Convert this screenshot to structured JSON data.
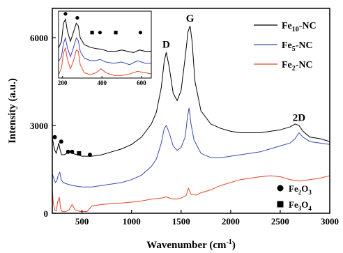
{
  "chart_data": [
    {
      "type": "line",
      "xlabel_main": "Wavenumber (cm",
      "xlabel_sup": "-1",
      "xlabel_tail": ")",
      "ylabel": "Intensity (a.u.)",
      "xlim": [
        200,
        3000
      ],
      "ylim": [
        0,
        7000
      ],
      "xticks": [
        500,
        1000,
        1500,
        2000,
        2500,
        3000
      ],
      "xtick_labels": [
        "500",
        "1000",
        "1500",
        "2000",
        "2500",
        "3000"
      ],
      "yticks": [
        0,
        3000,
        6000
      ],
      "ytick_labels": [
        "0",
        "3000",
        "6000"
      ],
      "legend_position": "top-right",
      "series": [
        {
          "name_main": "Fe",
          "name_sub": "10",
          "name_tail": "-NC",
          "color": "#000000",
          "x": [
            200,
            215,
            225,
            240,
            255,
            265,
            280,
            295,
            320,
            350,
            380,
            400,
            450,
            500,
            600,
            700,
            800,
            900,
            1000,
            1100,
            1200,
            1250,
            1300,
            1330,
            1350,
            1380,
            1420,
            1460,
            1500,
            1540,
            1570,
            1590,
            1610,
            1640,
            1700,
            1800,
            1900,
            2000,
            2100,
            2200,
            2300,
            2400,
            2500,
            2600,
            2650,
            2690,
            2730,
            2800,
            2900,
            3000
          ],
          "y": [
            2600,
            2300,
            2150,
            2050,
            2250,
            2400,
            2150,
            2000,
            2000,
            2050,
            2100,
            2050,
            2000,
            1950,
            1950,
            2000,
            2100,
            2200,
            2350,
            2600,
            3050,
            3450,
            4300,
            5200,
            5500,
            5000,
            4100,
            3850,
            4200,
            5300,
            6200,
            6400,
            5900,
            4500,
            3500,
            3050,
            2900,
            2800,
            2750,
            2750,
            2750,
            2800,
            2850,
            2950,
            3050,
            3000,
            2800,
            2600,
            2550,
            2450
          ]
        },
        {
          "name_main": "Fe",
          "name_sub": "5",
          "name_tail": "-NC",
          "color": "#3a48b0",
          "x": [
            200,
            215,
            230,
            245,
            260,
            275,
            290,
            310,
            350,
            400,
            500,
            600,
            700,
            800,
            900,
            1000,
            1100,
            1200,
            1250,
            1300,
            1330,
            1350,
            1380,
            1420,
            1460,
            1500,
            1540,
            1565,
            1580,
            1600,
            1630,
            1700,
            1800,
            1900,
            2000,
            2100,
            2200,
            2300,
            2400,
            2500,
            2600,
            2650,
            2690,
            2730,
            2800,
            2900,
            3000
          ],
          "y": [
            1350,
            1200,
            1050,
            1100,
            1300,
            1400,
            1150,
            1050,
            1000,
            950,
            900,
            900,
            950,
            1000,
            1050,
            1150,
            1300,
            1600,
            1850,
            2400,
            2900,
            3000,
            2750,
            2300,
            2150,
            2250,
            2600,
            3300,
            3600,
            3050,
            2500,
            2050,
            1900,
            1900,
            1950,
            2000,
            2050,
            2100,
            2200,
            2300,
            2400,
            2550,
            2750,
            2600,
            2450,
            2400,
            2350
          ]
        },
        {
          "name_main": "Fe",
          "name_sub": "2",
          "name_tail": "-NC",
          "color": "#e8442a",
          "x": [
            200,
            210,
            225,
            240,
            255,
            270,
            285,
            300,
            330,
            370,
            400,
            430,
            480,
            550,
            600,
            700,
            800,
            900,
            1000,
            1100,
            1200,
            1300,
            1350,
            1400,
            1450,
            1500,
            1550,
            1575,
            1600,
            1650,
            1700,
            1800,
            1900,
            2000,
            2100,
            2200,
            2300,
            2400,
            2500,
            2600,
            2700,
            2800,
            2900,
            3000
          ],
          "y": [
            800,
            350,
            120,
            80,
            400,
            550,
            150,
            60,
            50,
            120,
            300,
            120,
            60,
            60,
            250,
            300,
            330,
            350,
            380,
            420,
            480,
            520,
            560,
            500,
            480,
            520,
            600,
            850,
            650,
            620,
            700,
            800,
            950,
            1050,
            1150,
            1200,
            1250,
            1280,
            1250,
            1150,
            1100,
            1150,
            1200,
            1280
          ]
        }
      ],
      "peak_labels": [
        {
          "text": "D",
          "x": 1350,
          "y": 5650
        },
        {
          "text": "G",
          "x": 1590,
          "y": 6550
        },
        {
          "text": "2D",
          "x": 2690,
          "y": 3150
        }
      ],
      "circle_markers": [
        {
          "x": 225,
          "y": 2600
        },
        {
          "x": 290,
          "y": 2450
        },
        {
          "x": 360,
          "y": 2100
        },
        {
          "x": 400,
          "y": 2100
        },
        {
          "x": 580,
          "y": 2000
        }
      ],
      "square_markers": [
        {
          "x": 470,
          "y": 2050
        }
      ],
      "marker_legend": [
        {
          "shape": "circle",
          "main": "Fe",
          "sub1": "2",
          "mid": "O",
          "sub2": "3"
        },
        {
          "shape": "square",
          "main": "Fe",
          "sub1": "3",
          "mid": "O",
          "sub2": "4"
        }
      ]
    },
    {
      "type": "line",
      "xlim": [
        180,
        650
      ],
      "ylim": [
        0,
        100
      ],
      "xticks": [
        200,
        400,
        600
      ],
      "xtick_labels": [
        "200",
        "400",
        "600"
      ],
      "series": [
        {
          "color": "#000000",
          "x": [
            180,
            195,
            205,
            215,
            225,
            240,
            255,
            270,
            280,
            290,
            310,
            340,
            370,
            400,
            430,
            470,
            500,
            530,
            560,
            590,
            620,
            650
          ],
          "y": [
            45,
            55,
            82,
            88,
            70,
            55,
            68,
            82,
            78,
            60,
            50,
            46,
            44,
            43,
            40,
            40,
            42,
            40,
            38,
            42,
            40,
            40
          ]
        },
        {
          "color": "#3a48b0",
          "x": [
            180,
            195,
            205,
            215,
            225,
            240,
            255,
            270,
            280,
            290,
            310,
            340,
            370,
            390,
            420,
            460,
            500,
            540,
            580,
            620,
            650
          ],
          "y": [
            25,
            32,
            52,
            60,
            45,
            32,
            45,
            60,
            56,
            40,
            30,
            26,
            26,
            28,
            24,
            22,
            24,
            20,
            26,
            22,
            22
          ]
        },
        {
          "color": "#e8442a",
          "x": [
            180,
            195,
            205,
            215,
            225,
            240,
            255,
            270,
            280,
            290,
            310,
            340,
            370,
            395,
            420,
            460,
            500,
            540,
            580,
            620,
            650
          ],
          "y": [
            5,
            15,
            38,
            45,
            28,
            14,
            25,
            42,
            40,
            20,
            8,
            5,
            8,
            14,
            8,
            4,
            4,
            6,
            10,
            8,
            6
          ]
        }
      ],
      "circle_markers": [
        {
          "x": 215,
          "y": 96
        },
        {
          "x": 275,
          "y": 90
        },
        {
          "x": 390,
          "y": 68
        },
        {
          "x": 595,
          "y": 68
        }
      ],
      "square_markers": [
        {
          "x": 350,
          "y": 68
        },
        {
          "x": 470,
          "y": 68
        }
      ]
    }
  ]
}
